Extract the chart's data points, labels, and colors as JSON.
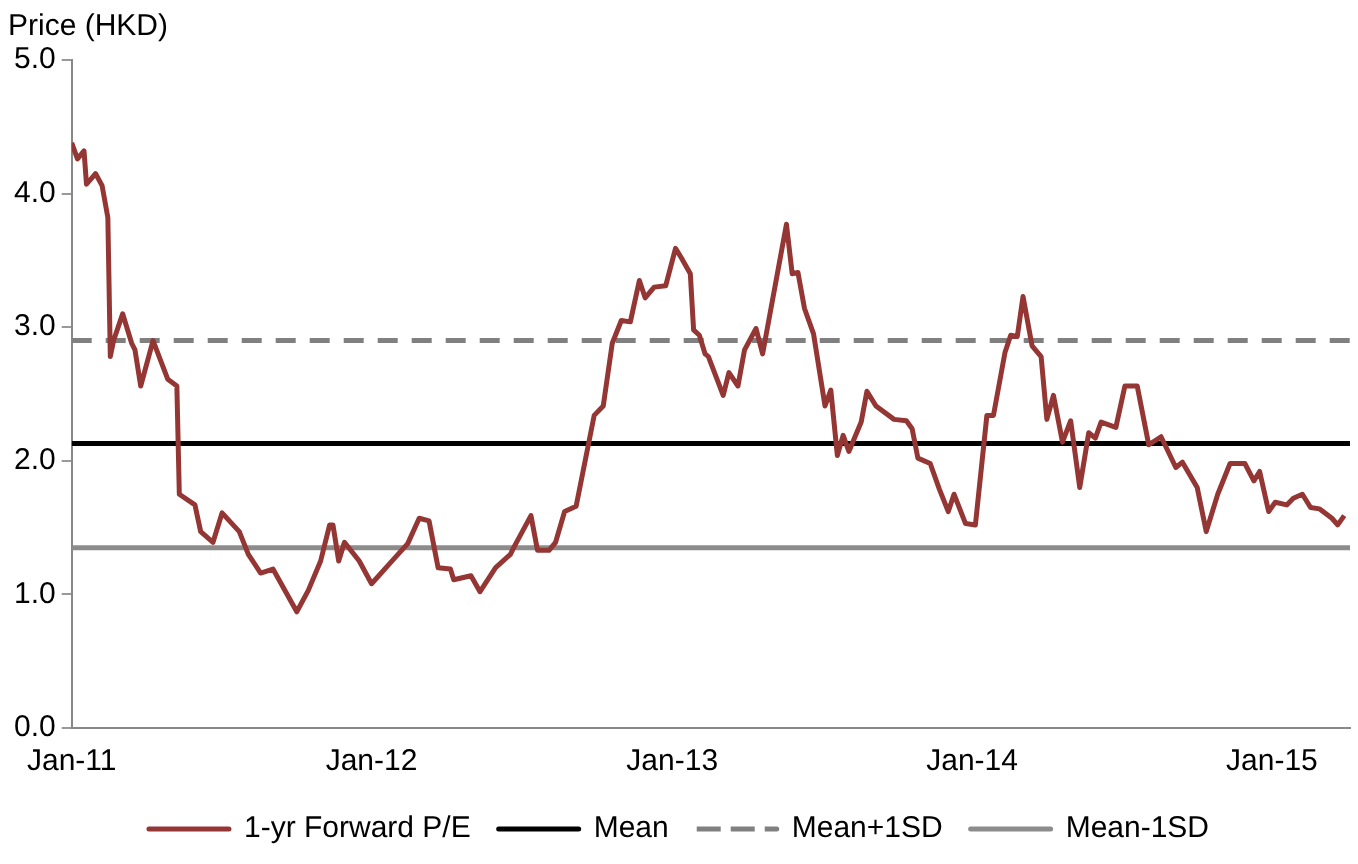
{
  "chart_data": {
    "type": "line",
    "ylabel": "Price (HKD)",
    "legend": "bottom",
    "marker": "none",
    "xlim": [
      "2011-01-01",
      "2015-04-06"
    ],
    "xticks": [
      {
        "value": "2011-01-01",
        "label": "Jan-11"
      },
      {
        "value": "2012-01-01",
        "label": "Jan-12"
      },
      {
        "value": "2013-01-01",
        "label": "Jan-13"
      },
      {
        "value": "2014-01-01",
        "label": "Jan-14"
      },
      {
        "value": "2015-01-01",
        "label": "Jan-15"
      }
    ],
    "ylim": [
      0,
      5
    ],
    "yticks": [
      {
        "value": 0,
        "label": "0.0"
      },
      {
        "value": 1,
        "label": "1.0"
      },
      {
        "value": 2,
        "label": "2.0"
      },
      {
        "value": 3,
        "label": "3.0"
      },
      {
        "value": 4,
        "label": "4.0"
      },
      {
        "value": 5,
        "label": "5.0"
      }
    ],
    "series": [
      {
        "name": "1-yr Forward P/E",
        "color": "#943634",
        "line_style": "solid",
        "x": [
          "2011-01-01",
          "2011-01-08",
          "2011-01-16",
          "2011-01-19",
          "2011-01-30",
          "2011-02-07",
          "2011-02-14",
          "2011-02-17",
          "2011-02-21",
          "2011-03-04",
          "2011-03-15",
          "2011-03-19",
          "2011-03-26",
          "2011-04-10",
          "2011-04-28",
          "2011-05-09",
          "2011-05-12",
          "2011-05-31",
          "2011-06-07",
          "2011-06-22",
          "2011-07-03",
          "2011-07-24",
          "2011-08-04",
          "2011-08-19",
          "2011-09-03",
          "2011-10-02",
          "2011-10-16",
          "2011-10-31",
          "2011-11-11",
          "2011-11-15",
          "2011-11-22",
          "2011-11-29",
          "2011-12-17",
          "2012-01-01",
          "2012-01-23",
          "2012-02-14",
          "2012-02-28",
          "2012-03-11",
          "2012-03-22",
          "2012-04-06",
          "2012-04-10",
          "2012-05-01",
          "2012-05-12",
          "2012-05-31",
          "2012-06-18",
          "2012-06-22",
          "2012-07-13",
          "2012-07-21",
          "2012-08-04",
          "2012-08-12",
          "2012-08-23",
          "2012-09-06",
          "2012-09-28",
          "2012-10-09",
          "2012-10-20",
          "2012-10-31",
          "2012-11-11",
          "2012-11-22",
          "2012-11-29",
          "2012-12-10",
          "2012-12-24",
          "2013-01-05",
          "2013-01-12",
          "2013-01-23",
          "2013-01-27",
          "2013-02-03",
          "2013-02-10",
          "2013-02-14",
          "2013-03-04",
          "2013-03-11",
          "2013-03-22",
          "2013-03-30",
          "2013-04-13",
          "2013-04-21",
          "2013-05-20",
          "2013-05-27",
          "2013-06-03",
          "2013-06-11",
          "2013-06-22",
          "2013-07-06",
          "2013-07-13",
          "2013-07-21",
          "2013-07-28",
          "2013-08-04",
          "2013-08-19",
          "2013-08-26",
          "2013-09-06",
          "2013-09-28",
          "2013-10-13",
          "2013-10-20",
          "2013-10-27",
          "2013-11-11",
          "2013-11-22",
          "2013-12-03",
          "2013-12-10",
          "2013-12-24",
          "2014-01-05",
          "2014-01-19",
          "2014-01-27",
          "2014-02-10",
          "2014-02-17",
          "2014-02-25",
          "2014-03-04",
          "2014-03-15",
          "2014-03-26",
          "2014-04-02",
          "2014-04-10",
          "2014-04-21",
          "2014-05-01",
          "2014-05-12",
          "2014-05-23",
          "2014-05-31",
          "2014-06-07",
          "2014-06-25",
          "2014-07-06",
          "2014-07-21",
          "2014-08-04",
          "2014-08-19",
          "2014-09-06",
          "2014-09-14",
          "2014-10-02",
          "2014-10-13",
          "2014-10-27",
          "2014-11-11",
          "2014-11-29",
          "2014-12-10",
          "2014-12-17",
          "2014-12-28",
          "2015-01-05",
          "2015-01-19",
          "2015-01-27",
          "2015-02-07",
          "2015-02-17",
          "2015-02-28",
          "2015-03-15",
          "2015-03-22",
          "2015-03-30"
        ],
        "values": [
          4.38,
          4.26,
          4.32,
          4.07,
          4.15,
          4.06,
          3.82,
          2.78,
          2.9,
          3.1,
          2.88,
          2.83,
          2.56,
          2.9,
          2.61,
          2.56,
          1.75,
          1.67,
          1.47,
          1.39,
          1.61,
          1.47,
          1.3,
          1.16,
          1.19,
          0.87,
          1.03,
          1.25,
          1.52,
          1.52,
          1.25,
          1.39,
          1.25,
          1.08,
          1.23,
          1.38,
          1.57,
          1.55,
          1.2,
          1.19,
          1.11,
          1.14,
          1.02,
          1.2,
          1.3,
          1.35,
          1.59,
          1.33,
          1.33,
          1.39,
          1.62,
          1.66,
          2.34,
          2.41,
          2.88,
          3.05,
          3.04,
          3.35,
          3.22,
          3.3,
          3.31,
          3.59,
          3.52,
          3.4,
          2.98,
          2.94,
          2.8,
          2.78,
          2.49,
          2.66,
          2.56,
          2.83,
          2.99,
          2.8,
          3.77,
          3.4,
          3.41,
          3.14,
          2.95,
          2.41,
          2.53,
          2.04,
          2.19,
          2.07,
          2.29,
          2.52,
          2.41,
          2.31,
          2.3,
          2.24,
          2.02,
          1.98,
          1.79,
          1.62,
          1.75,
          1.53,
          1.52,
          2.34,
          2.34,
          2.81,
          2.94,
          2.93,
          3.23,
          2.86,
          2.78,
          2.31,
          2.49,
          2.14,
          2.3,
          1.8,
          2.21,
          2.17,
          2.29,
          2.25,
          2.56,
          2.56,
          2.12,
          2.18,
          1.95,
          1.99,
          1.8,
          1.47,
          1.75,
          1.98,
          1.98,
          1.85,
          1.92,
          1.62,
          1.69,
          1.67,
          1.72,
          1.75,
          1.65,
          1.64,
          1.57,
          1.52,
          1.59
        ]
      },
      {
        "name": "Mean",
        "color": "#000000",
        "line_style": "solid",
        "x": [
          "2011-01-01",
          "2015-04-06"
        ],
        "values": [
          2.13,
          2.13
        ]
      },
      {
        "name": "Mean+1SD",
        "color": "#808080",
        "line_style": "dashed",
        "x": [
          "2011-01-01",
          "2015-04-06"
        ],
        "values": [
          2.9,
          2.9
        ]
      },
      {
        "name": "Mean-1SD",
        "color": "#8c8c8c",
        "line_style": "solid",
        "x": [
          "2011-01-01",
          "2015-04-06"
        ],
        "values": [
          1.35,
          1.35
        ]
      }
    ]
  }
}
